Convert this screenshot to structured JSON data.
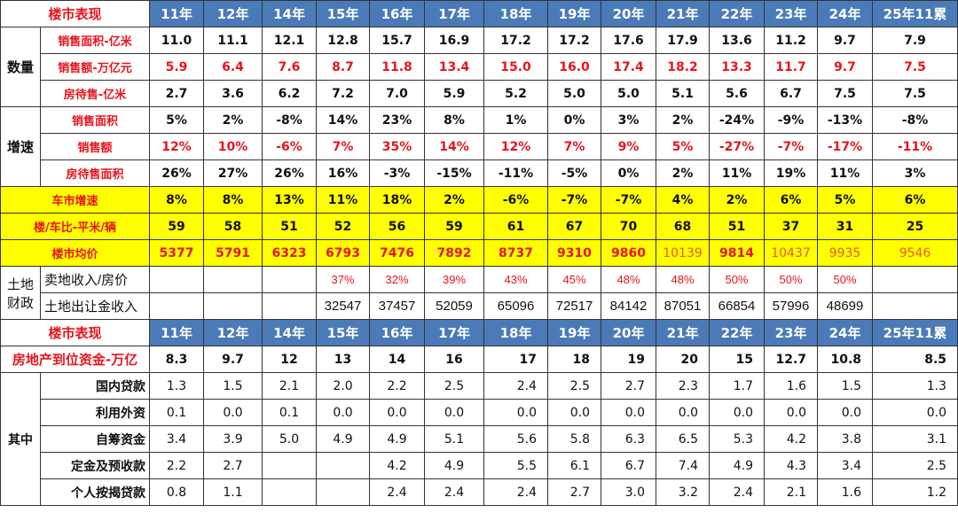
{
  "colors": {
    "header_bg": "#4a7ab8",
    "highlight_bg": "#ffff00",
    "red": "#e8141c"
  },
  "title": "楼市表现",
  "years": [
    "11年",
    "12年",
    "14年",
    "15年",
    "16年",
    "17年",
    "18年",
    "19年",
    "20年",
    "21年",
    "22年",
    "23年",
    "24年",
    "25年11累"
  ],
  "quantity": {
    "group": "数量",
    "rows": [
      {
        "label": "销售面积-亿米",
        "values": [
          "11.0",
          "11.1",
          "12.1",
          "12.8",
          "15.7",
          "16.9",
          "17.2",
          "17.2",
          "17.6",
          "17.9",
          "13.6",
          "11.2",
          "9.7",
          "7.9"
        ]
      },
      {
        "label": "销售额-万亿元",
        "values": [
          "5.9",
          "6.4",
          "7.6",
          "8.7",
          "11.8",
          "13.4",
          "15.0",
          "16.0",
          "17.4",
          "18.2",
          "13.3",
          "11.7",
          "9.7",
          "7.5"
        ]
      },
      {
        "label": "房待售-亿米",
        "values": [
          "2.7",
          "3.6",
          "6.2",
          "7.2",
          "7.0",
          "5.9",
          "5.2",
          "5.0",
          "5.0",
          "5.1",
          "5.6",
          "6.7",
          "7.5",
          "7.5"
        ]
      }
    ]
  },
  "growth": {
    "group": "增速",
    "rows": [
      {
        "label": "销售面积",
        "values": [
          "5%",
          "2%",
          "-8%",
          "14%",
          "23%",
          "8%",
          "1%",
          "0%",
          "3%",
          "2%",
          "-24%",
          "-9%",
          "-13%",
          "-8%"
        ]
      },
      {
        "label": "销售额",
        "values": [
          "12%",
          "10%",
          "-6%",
          "7%",
          "35%",
          "14%",
          "12%",
          "7%",
          "9%",
          "5%",
          "-27%",
          "-7%",
          "-17%",
          "-11%"
        ]
      },
      {
        "label": "房待售面积",
        "values": [
          "26%",
          "27%",
          "26%",
          "16%",
          "-3%",
          "-15%",
          "-11%",
          "-5%",
          "0%",
          "2%",
          "11%",
          "19%",
          "11%",
          "3%"
        ]
      }
    ]
  },
  "highlight": [
    {
      "label": "车市增速",
      "values": [
        "8%",
        "8%",
        "13%",
        "11%",
        "18%",
        "2%",
        "-6%",
        "-7%",
        "-7%",
        "4%",
        "2%",
        "6%",
        "5%",
        "6%"
      ]
    },
    {
      "label": "楼/车比-平米/辆",
      "values": [
        "59",
        "58",
        "51",
        "52",
        "56",
        "59",
        "61",
        "67",
        "70",
        "68",
        "51",
        "37",
        "31",
        "25"
      ]
    },
    {
      "label": "楼市均价",
      "values": [
        "5377",
        "5791",
        "6323",
        "6793",
        "7476",
        "7892",
        "8737",
        "9310",
        "9860",
        "10139",
        "9814",
        "10437",
        "9935",
        "9546"
      ]
    }
  ],
  "land": {
    "group": "土地财政",
    "rows": [
      {
        "label": "卖地收入/房价",
        "values": [
          "",
          "",
          "",
          "37%",
          "32%",
          "39%",
          "43%",
          "45%",
          "48%",
          "48%",
          "50%",
          "50%",
          "50%",
          ""
        ]
      },
      {
        "label": "土地出让金收入",
        "values": [
          "",
          "",
          "",
          "32547",
          "37457",
          "52059",
          "65096",
          "72517",
          "84142",
          "87051",
          "66854",
          "57996",
          "48699",
          ""
        ]
      }
    ]
  },
  "funds": {
    "label": "房地产到位资金-万亿",
    "values": [
      "8.3",
      "9.7",
      "12",
      "13",
      "14",
      "16",
      "17",
      "18",
      "19",
      "20",
      "15",
      "12.7",
      "10.8",
      "8.5"
    ]
  },
  "funds_detail": {
    "group": "其中",
    "rows": [
      {
        "label": "国内贷款",
        "values": [
          "1.3",
          "1.5",
          "2.1",
          "2.0",
          "2.2",
          "2.5",
          "2.4",
          "2.5",
          "2.7",
          "2.3",
          "1.7",
          "1.6",
          "1.5",
          "1.3"
        ]
      },
      {
        "label": "利用外资",
        "values": [
          "0.1",
          "0.0",
          "0.1",
          "0.0",
          "0.0",
          "0.0",
          "0.0",
          "0.0",
          "0.0",
          "0.0",
          "0.0",
          "0.0",
          "0.0",
          "0.0"
        ]
      },
      {
        "label": "自筹资金",
        "values": [
          "3.4",
          "3.9",
          "5.0",
          "4.9",
          "4.9",
          "5.1",
          "5.6",
          "5.8",
          "6.3",
          "6.5",
          "5.3",
          "4.2",
          "3.8",
          "3.1"
        ]
      },
      {
        "label": "定金及预收款",
        "values": [
          "2.2",
          "2.7",
          "",
          "",
          "4.2",
          "4.9",
          "5.5",
          "6.1",
          "6.7",
          "7.4",
          "4.9",
          "4.3",
          "3.4",
          "2.5"
        ]
      },
      {
        "label": "个人按揭贷款",
        "values": [
          "0.8",
          "1.1",
          "",
          "",
          "2.4",
          "2.4",
          "2.4",
          "2.7",
          "3.0",
          "3.2",
          "2.4",
          "2.1",
          "1.6",
          "1.2"
        ]
      }
    ]
  }
}
